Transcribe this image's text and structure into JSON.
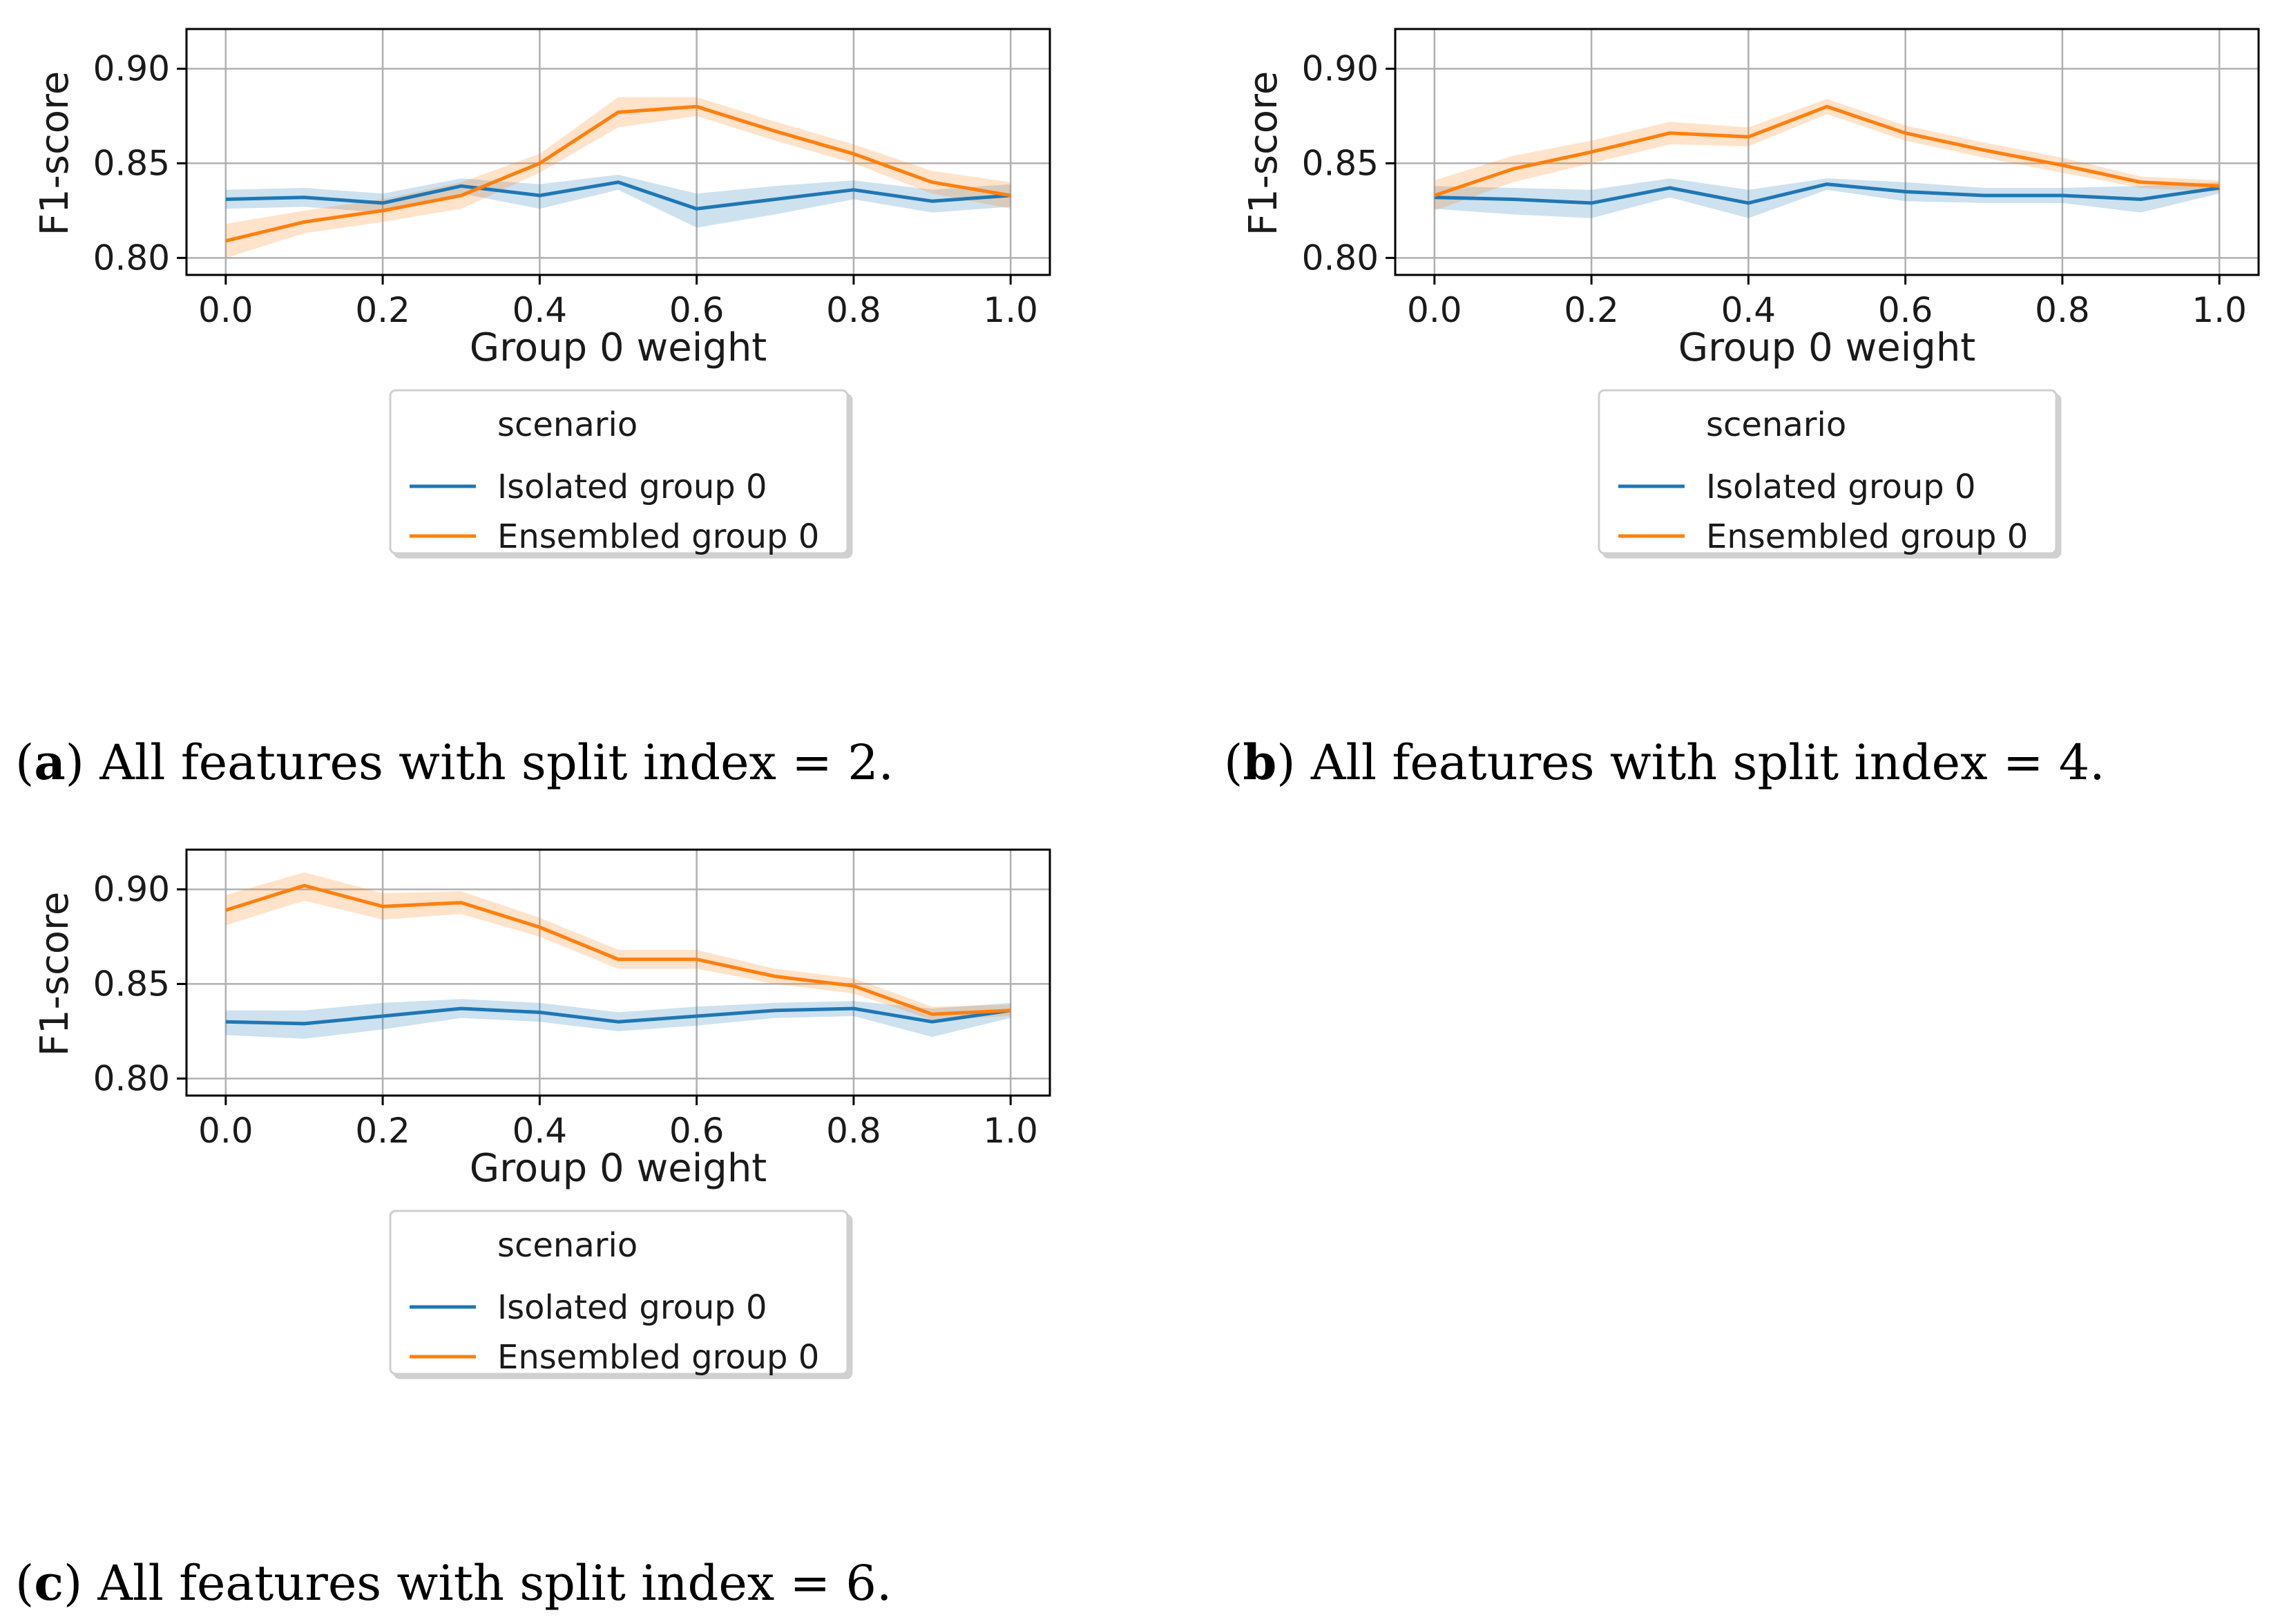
{
  "colors": {
    "isolated": "#1f77b4",
    "ensembled": "#ff7f0e",
    "grid": "#b0b0b0",
    "axis": "#000000"
  },
  "chart_data": [
    {
      "type": "line",
      "panel": "a",
      "title": "",
      "xlabel": "Group 0 weight",
      "ylabel": "F1-score",
      "xlim": [
        -0.05,
        1.05
      ],
      "ylim": [
        0.791,
        0.921
      ],
      "xticks": [
        0.0,
        0.2,
        0.4,
        0.6,
        0.8,
        1.0
      ],
      "xtick_labels": [
        "0.0",
        "0.2",
        "0.4",
        "0.6",
        "0.8",
        "1.0"
      ],
      "yticks": [
        0.8,
        0.85,
        0.9
      ],
      "ytick_labels": [
        "0.80",
        "0.85",
        "0.90"
      ],
      "grid": true,
      "legend": {
        "title": "scenario",
        "position": "below"
      },
      "x": [
        0.0,
        0.1,
        0.2,
        0.3,
        0.4,
        0.5,
        0.6,
        0.7,
        0.8,
        0.9,
        1.0
      ],
      "series": [
        {
          "name": "Isolated group 0",
          "values": [
            0.831,
            0.832,
            0.829,
            0.838,
            0.833,
            0.84,
            0.826,
            0.831,
            0.836,
            0.83,
            0.833
          ],
          "lower": [
            0.826,
            0.827,
            0.824,
            0.834,
            0.826,
            0.836,
            0.816,
            0.823,
            0.831,
            0.824,
            0.827
          ],
          "upper": [
            0.836,
            0.837,
            0.834,
            0.842,
            0.839,
            0.844,
            0.834,
            0.838,
            0.841,
            0.836,
            0.839
          ]
        },
        {
          "name": "Ensembled group 0",
          "values": [
            0.809,
            0.819,
            0.825,
            0.833,
            0.85,
            0.877,
            0.88,
            0.867,
            0.855,
            0.84,
            0.833
          ],
          "lower": [
            0.8,
            0.813,
            0.819,
            0.826,
            0.845,
            0.869,
            0.875,
            0.862,
            0.85,
            0.834,
            0.826
          ],
          "upper": [
            0.818,
            0.825,
            0.831,
            0.84,
            0.855,
            0.885,
            0.885,
            0.872,
            0.86,
            0.846,
            0.84
          ]
        }
      ]
    },
    {
      "type": "line",
      "panel": "b",
      "title": "",
      "xlabel": "Group 0 weight",
      "ylabel": "F1-score",
      "xlim": [
        -0.05,
        1.05
      ],
      "ylim": [
        0.791,
        0.921
      ],
      "xticks": [
        0.0,
        0.2,
        0.4,
        0.6,
        0.8,
        1.0
      ],
      "xtick_labels": [
        "0.0",
        "0.2",
        "0.4",
        "0.6",
        "0.8",
        "1.0"
      ],
      "yticks": [
        0.8,
        0.85,
        0.9
      ],
      "ytick_labels": [
        "0.80",
        "0.85",
        "0.90"
      ],
      "grid": true,
      "legend": {
        "title": "scenario",
        "position": "below"
      },
      "x": [
        0.0,
        0.1,
        0.2,
        0.3,
        0.4,
        0.5,
        0.6,
        0.7,
        0.8,
        0.9,
        1.0
      ],
      "series": [
        {
          "name": "Isolated group 0",
          "values": [
            0.832,
            0.831,
            0.829,
            0.837,
            0.829,
            0.839,
            0.835,
            0.833,
            0.833,
            0.831,
            0.837
          ],
          "lower": [
            0.826,
            0.823,
            0.821,
            0.832,
            0.821,
            0.836,
            0.83,
            0.829,
            0.829,
            0.824,
            0.834
          ],
          "upper": [
            0.838,
            0.837,
            0.836,
            0.842,
            0.836,
            0.842,
            0.84,
            0.837,
            0.837,
            0.838,
            0.84
          ]
        },
        {
          "name": "Ensembled group 0",
          "values": [
            0.833,
            0.847,
            0.856,
            0.866,
            0.864,
            0.88,
            0.866,
            0.857,
            0.849,
            0.84,
            0.838
          ],
          "lower": [
            0.825,
            0.84,
            0.85,
            0.86,
            0.859,
            0.876,
            0.862,
            0.853,
            0.845,
            0.837,
            0.835
          ],
          "upper": [
            0.841,
            0.854,
            0.862,
            0.872,
            0.869,
            0.884,
            0.87,
            0.861,
            0.853,
            0.843,
            0.841
          ]
        }
      ]
    },
    {
      "type": "line",
      "panel": "c",
      "title": "",
      "xlabel": "Group 0 weight",
      "ylabel": "F1-score",
      "xlim": [
        -0.05,
        1.05
      ],
      "ylim": [
        0.791,
        0.921
      ],
      "xticks": [
        0.0,
        0.2,
        0.4,
        0.6,
        0.8,
        1.0
      ],
      "xtick_labels": [
        "0.0",
        "0.2",
        "0.4",
        "0.6",
        "0.8",
        "1.0"
      ],
      "yticks": [
        0.8,
        0.85,
        0.9
      ],
      "ytick_labels": [
        "0.80",
        "0.85",
        "0.90"
      ],
      "grid": true,
      "legend": {
        "title": "scenario",
        "position": "below"
      },
      "x": [
        0.0,
        0.1,
        0.2,
        0.3,
        0.4,
        0.5,
        0.6,
        0.7,
        0.8,
        0.9,
        1.0
      ],
      "series": [
        {
          "name": "Isolated group 0",
          "values": [
            0.83,
            0.829,
            0.833,
            0.837,
            0.835,
            0.83,
            0.833,
            0.836,
            0.837,
            0.83,
            0.836
          ],
          "lower": [
            0.823,
            0.821,
            0.826,
            0.832,
            0.83,
            0.825,
            0.828,
            0.832,
            0.833,
            0.822,
            0.832
          ],
          "upper": [
            0.836,
            0.836,
            0.84,
            0.842,
            0.84,
            0.835,
            0.838,
            0.84,
            0.841,
            0.837,
            0.84
          ]
        },
        {
          "name": "Ensembled group 0",
          "values": [
            0.889,
            0.902,
            0.891,
            0.893,
            0.88,
            0.863,
            0.863,
            0.854,
            0.849,
            0.834,
            0.836
          ],
          "lower": [
            0.881,
            0.894,
            0.884,
            0.887,
            0.875,
            0.858,
            0.858,
            0.85,
            0.845,
            0.831,
            0.833
          ],
          "upper": [
            0.897,
            0.909,
            0.898,
            0.899,
            0.885,
            0.868,
            0.868,
            0.858,
            0.853,
            0.838,
            0.839
          ]
        }
      ]
    }
  ],
  "captions": [
    {
      "label": "a",
      "text": " All features with split index = 2."
    },
    {
      "label": "b",
      "text": " All features with split index = 4."
    },
    {
      "label": "c",
      "text": " All features with split index = 6."
    }
  ]
}
